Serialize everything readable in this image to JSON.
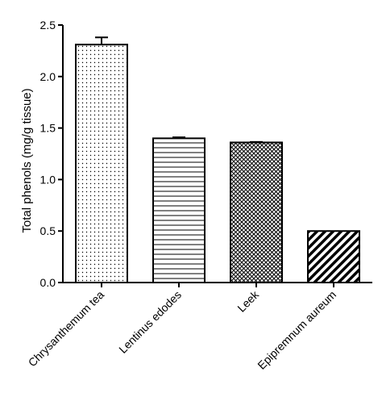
{
  "chart_data": {
    "type": "bar",
    "categories": [
      "Chrysanthemum tea",
      "Lentinus edodes",
      "Leek",
      "Epipremnum aureum"
    ],
    "values": [
      2.31,
      1.4,
      1.36,
      0.5
    ],
    "errors": [
      0.07,
      0.01,
      0.005,
      0.0
    ],
    "patterns": [
      "dots",
      "horizontal-lines",
      "crosshatch",
      "diagonal-stripes"
    ],
    "title": "",
    "xlabel": "",
    "ylabel": "Total phenols (mg/g tissue)",
    "ylim": [
      0,
      2.5
    ],
    "yticks": [
      "0.0",
      "0.5",
      "1.0",
      "1.5",
      "2.0",
      "2.5"
    ],
    "grid": false,
    "legend": "none"
  }
}
